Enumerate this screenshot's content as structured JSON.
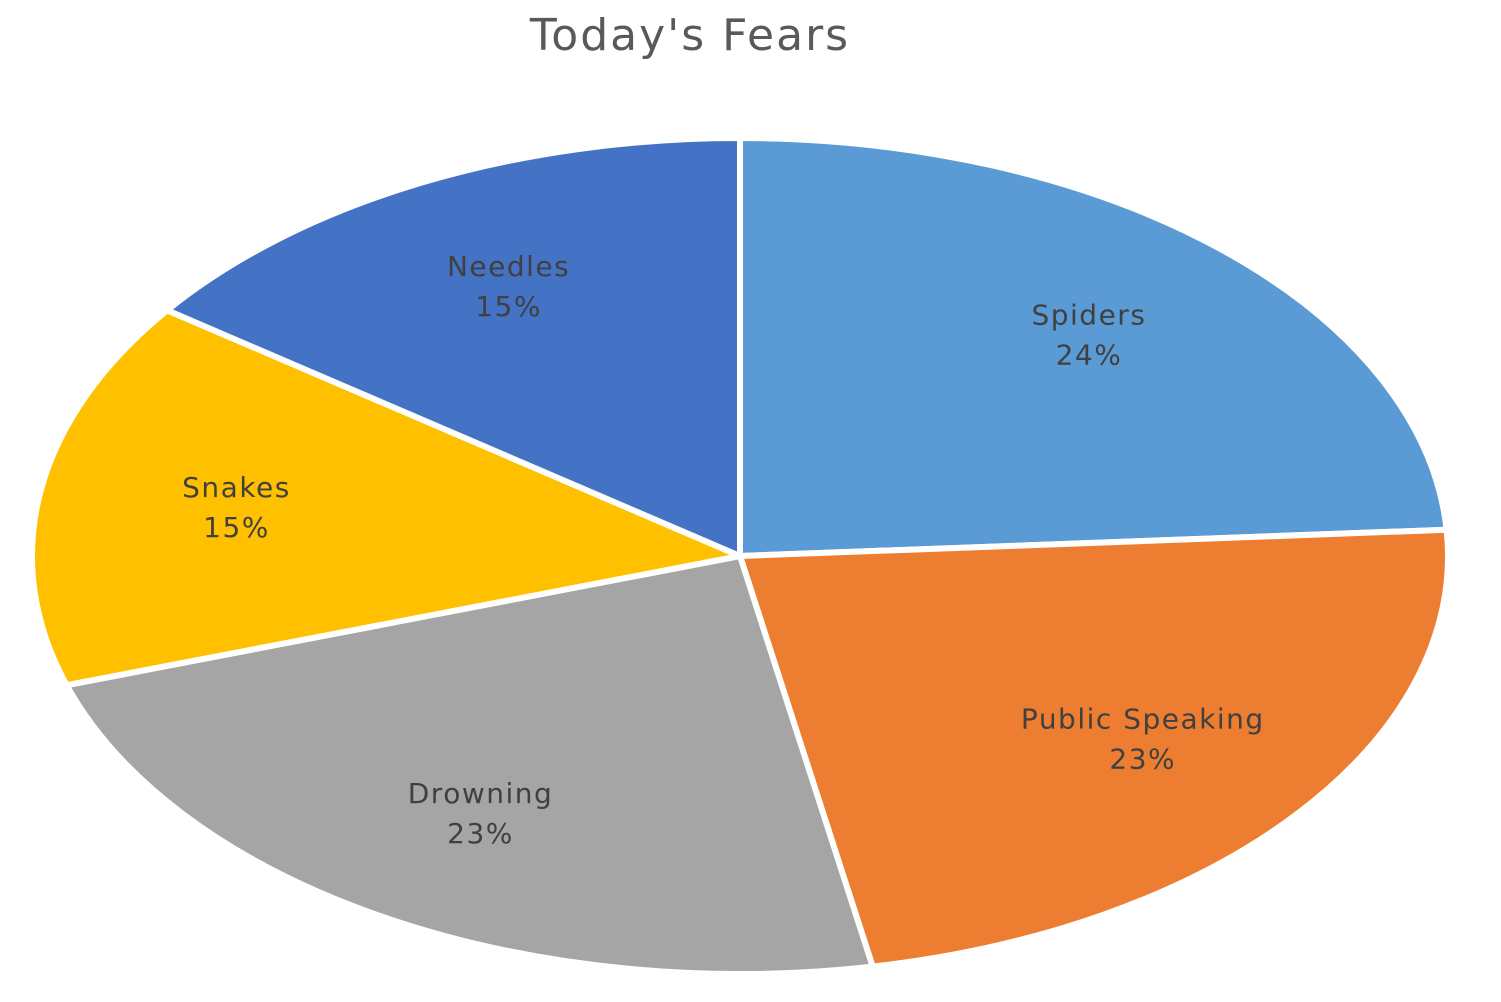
{
  "chart_data": {
    "type": "pie",
    "title": "Today's Fears",
    "categories": [
      "Spiders",
      "Public Speaking",
      "Drowning",
      "Snakes",
      "Needles"
    ],
    "values": [
      24,
      23,
      23,
      15,
      15
    ],
    "value_labels": [
      "24%",
      "23%",
      "23%",
      "15%",
      "15%"
    ],
    "colors": [
      "#5b9bd5",
      "#ed7d31",
      "#a5a5a5",
      "#ffc000",
      "#4472c4"
    ]
  }
}
